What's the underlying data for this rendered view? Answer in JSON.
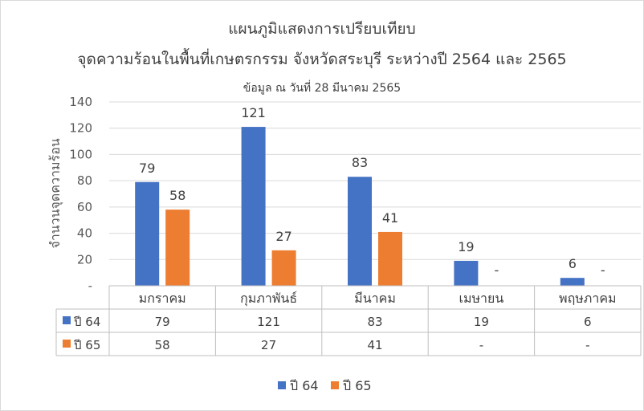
{
  "chart_data": {
    "type": "bar",
    "title_line1": "แผนภูมิแสดงการเปรียบเทียบ",
    "title_line2": "จุดความร้อนในพื้นที่เกษตรกรรม  จังหวัดสระบุรี ระหว่างปี 2564 และ 2565",
    "subtitle": "ข้อมูล ณ วันที่ 28 มีนาคม 2565",
    "ylabel": "จำนวนจุดความร้อน",
    "xlabel": "",
    "ylim": [
      0,
      140
    ],
    "yticks": [
      0,
      20,
      40,
      60,
      80,
      100,
      120,
      140
    ],
    "yticklabels": [
      "-",
      "20",
      "40",
      "60",
      "80",
      "100",
      "120",
      "140"
    ],
    "categories": [
      "มกราคม",
      "กุมภาพันธ์",
      "มีนาคม",
      "เมษายน",
      "พฤษภาคม"
    ],
    "series": [
      {
        "name": "ปี 64",
        "color": "#4472c4",
        "values": [
          79,
          121,
          83,
          19,
          6
        ],
        "labels": [
          "79",
          "121",
          "83",
          "19",
          "6"
        ]
      },
      {
        "name": "ปี 65",
        "color": "#ed7d31",
        "values": [
          58,
          27,
          41,
          null,
          null
        ],
        "labels": [
          "58",
          "27",
          "41",
          "-",
          "-"
        ]
      }
    ],
    "grid": true,
    "legend_position": "bottom",
    "data_table": true
  }
}
